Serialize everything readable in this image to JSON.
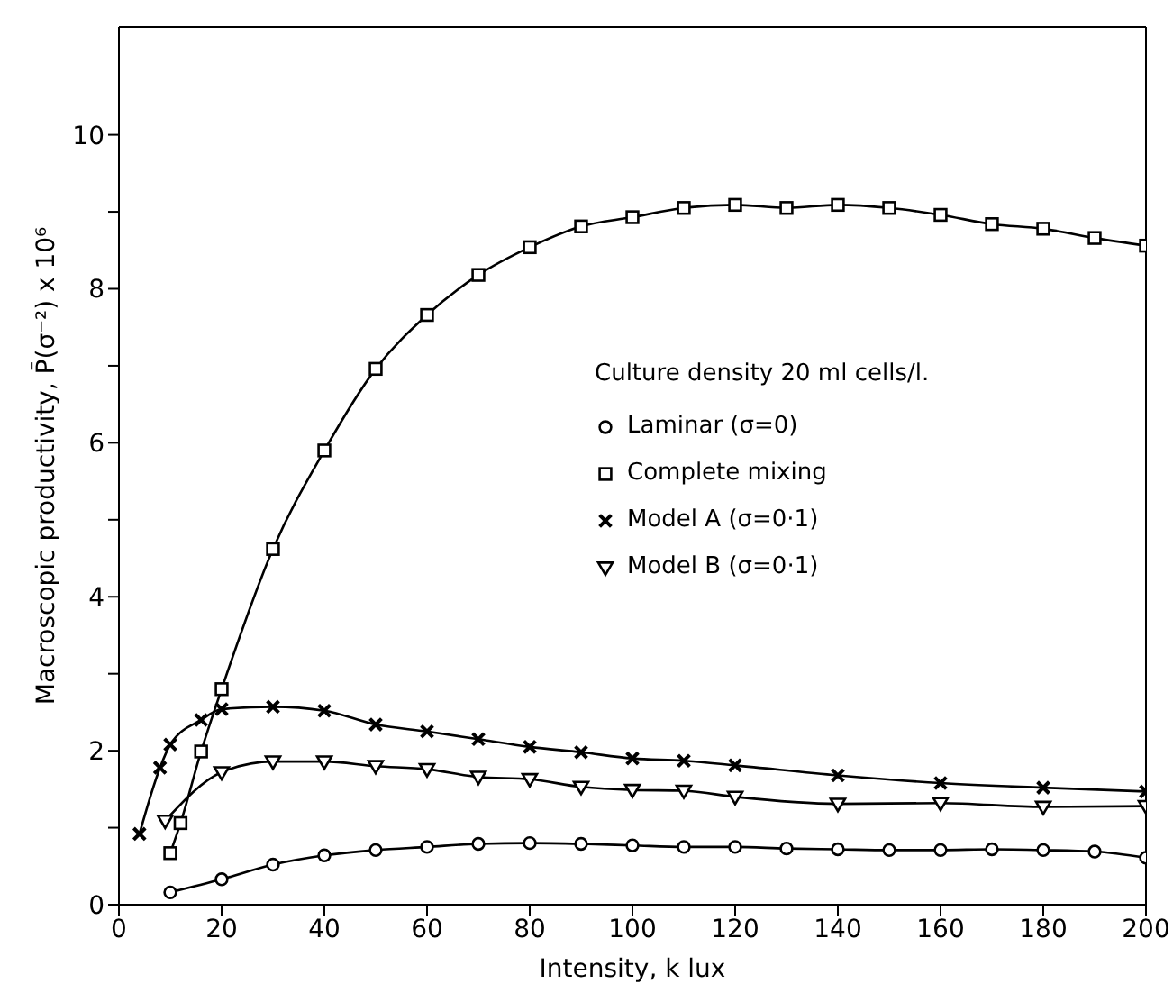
{
  "chart_data": {
    "type": "line",
    "xlabel": "Intensity, k lux",
    "ylabel": "Macroscopic productivity, P̄(σ⁻²) x 10⁶",
    "legend_title": "Culture density 20 ml cells/l.",
    "legend": "right",
    "line_style": "solid",
    "xlim": [
      0,
      200
    ],
    "xticks": [
      0,
      20,
      40,
      60,
      80,
      100,
      120,
      140,
      160,
      180,
      200
    ],
    "ylim": [
      0,
      11.4
    ],
    "yticks": [
      0,
      {
        "value": 1,
        "label": null
      },
      2,
      {
        "value": 3,
        "label": null
      },
      4,
      {
        "value": 5,
        "label": null
      },
      6,
      {
        "value": 7,
        "label": null
      },
      8,
      {
        "value": 9,
        "label": null
      },
      10
    ],
    "series": [
      {
        "name": "Laminar (σ=0)",
        "color": "#000000",
        "marker": "circle",
        "x": [
          10,
          20,
          30,
          40,
          50,
          60,
          70,
          80,
          90,
          100,
          110,
          120,
          130,
          140,
          150,
          160,
          170,
          180,
          190,
          200
        ],
        "values": [
          0.16,
          0.33,
          0.52,
          0.64,
          0.71,
          0.75,
          0.79,
          0.8,
          0.79,
          0.77,
          0.75,
          0.75,
          0.73,
          0.72,
          0.71,
          0.71,
          0.72,
          0.71,
          0.69,
          0.61
        ]
      },
      {
        "name": "Complete mixing",
        "color": "#000000",
        "marker": "square",
        "x": [
          10,
          12,
          16,
          20,
          30,
          40,
          50,
          60,
          70,
          80,
          90,
          100,
          110,
          120,
          130,
          140,
          150,
          160,
          170,
          180,
          190,
          200
        ],
        "values": [
          0.67,
          1.06,
          1.99,
          2.8,
          4.62,
          5.9,
          6.96,
          7.66,
          8.18,
          8.54,
          8.81,
          8.93,
          9.05,
          9.09,
          9.05,
          9.09,
          9.05,
          8.96,
          8.84,
          8.78,
          8.66,
          8.56
        ]
      },
      {
        "name": "Model A (σ=0·1)",
        "color": "#000000",
        "marker": "cross",
        "x": [
          4,
          8,
          10,
          16,
          20,
          30,
          40,
          50,
          60,
          70,
          80,
          90,
          100,
          110,
          120,
          140,
          160,
          180,
          200
        ],
        "values": [
          0.92,
          1.78,
          2.08,
          2.4,
          2.54,
          2.57,
          2.52,
          2.34,
          2.25,
          2.15,
          2.05,
          1.98,
          1.9,
          1.87,
          1.81,
          1.68,
          1.58,
          1.52,
          1.47
        ]
      },
      {
        "name": "Model B (σ=0·1)",
        "color": "#000000",
        "marker": "triangle",
        "x": [
          9,
          20,
          30,
          40,
          50,
          60,
          70,
          80,
          90,
          100,
          110,
          120,
          140,
          160,
          180,
          200
        ],
        "values": [
          1.09,
          1.72,
          1.86,
          1.86,
          1.8,
          1.76,
          1.66,
          1.63,
          1.53,
          1.49,
          1.48,
          1.4,
          1.31,
          1.32,
          1.27,
          1.28
        ]
      }
    ]
  }
}
